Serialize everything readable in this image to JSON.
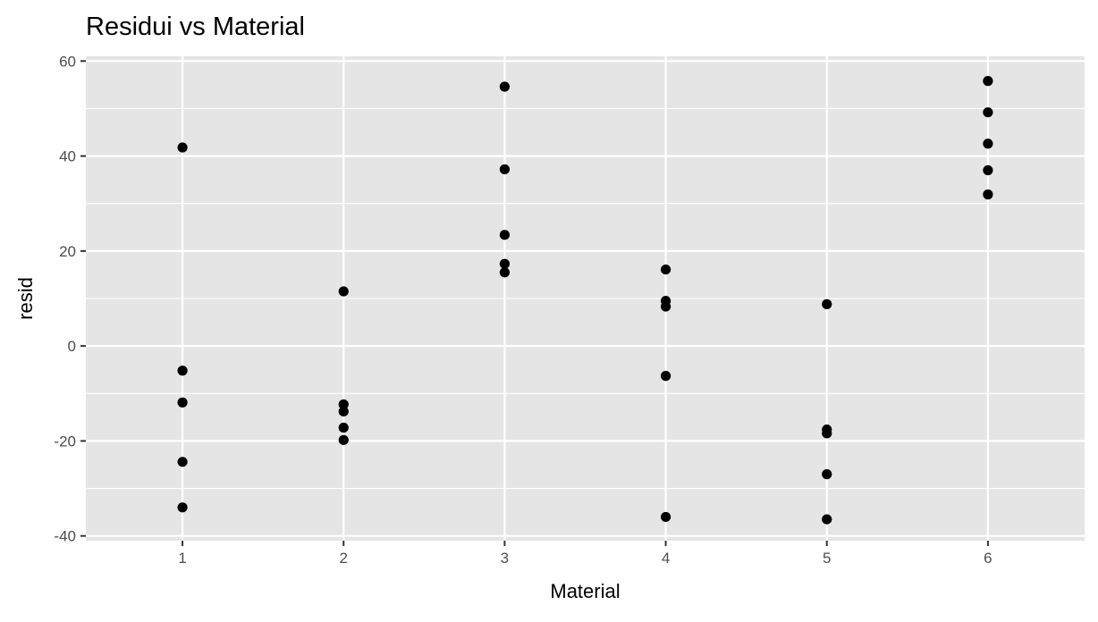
{
  "chart_data": {
    "type": "scatter",
    "title": "Residui vs Material",
    "xlabel": "Material",
    "ylabel": "resid",
    "x_ticks": [
      "1",
      "2",
      "3",
      "4",
      "5",
      "6"
    ],
    "y_ticks": [
      "-40",
      "-20",
      "0",
      "20",
      "40",
      "60"
    ],
    "xlim": [
      0.4,
      6.6
    ],
    "ylim": [
      -41,
      61
    ],
    "grid": true,
    "legend": "none",
    "colors": {
      "panel": "#e5e5e5",
      "grid": "#ffffff",
      "point": "#000000"
    },
    "points": [
      {
        "x": 1,
        "y": 41.8
      },
      {
        "x": 1,
        "y": -5.2
      },
      {
        "x": 1,
        "y": -11.9
      },
      {
        "x": 1,
        "y": -24.4
      },
      {
        "x": 1,
        "y": -34.0
      },
      {
        "x": 2,
        "y": 11.5
      },
      {
        "x": 2,
        "y": -12.3
      },
      {
        "x": 2,
        "y": -13.8
      },
      {
        "x": 2,
        "y": -17.2
      },
      {
        "x": 2,
        "y": -19.8
      },
      {
        "x": 3,
        "y": 54.6
      },
      {
        "x": 3,
        "y": 37.2
      },
      {
        "x": 3,
        "y": 23.4
      },
      {
        "x": 3,
        "y": 17.3
      },
      {
        "x": 3,
        "y": 15.5
      },
      {
        "x": 4,
        "y": 16.1
      },
      {
        "x": 4,
        "y": 9.5
      },
      {
        "x": 4,
        "y": 8.3
      },
      {
        "x": 4,
        "y": -6.3
      },
      {
        "x": 4,
        "y": -36.0
      },
      {
        "x": 5,
        "y": 8.8
      },
      {
        "x": 5,
        "y": -17.6
      },
      {
        "x": 5,
        "y": -18.4
      },
      {
        "x": 5,
        "y": -27.0
      },
      {
        "x": 5,
        "y": -36.5
      },
      {
        "x": 6,
        "y": 55.8
      },
      {
        "x": 6,
        "y": 49.2
      },
      {
        "x": 6,
        "y": 42.6
      },
      {
        "x": 6,
        "y": 37.0
      },
      {
        "x": 6,
        "y": 31.9
      }
    ]
  }
}
